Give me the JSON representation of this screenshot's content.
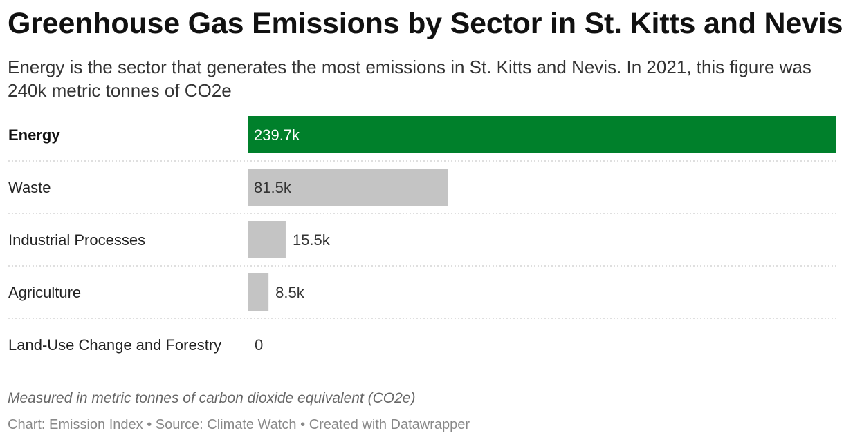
{
  "title": "Greenhouse Gas Emissions by Sector in St. Kitts and Nevis",
  "subtitle": "Energy is the sector that generates the most emissions in St. Kitts and Nevis. In 2021, this figure was 240k metric tonnes of CO2e",
  "note": "Measured in metric tonnes of carbon dioxide equivalent (CO2e)",
  "footer": {
    "chart_credit": "Chart: Emission Index",
    "separator": "•",
    "source": "Source: Climate Watch",
    "tool": "Created with Datawrapper"
  },
  "colors": {
    "highlight": "#00802b",
    "default_bar": "#c4c4c4",
    "highlight_label": "#ffffff",
    "default_label": "#333333"
  },
  "chart_data": {
    "type": "bar",
    "orientation": "horizontal",
    "categories": [
      "Energy",
      "Waste",
      "Industrial Processes",
      "Agriculture",
      "Land-Use Change and Forestry"
    ],
    "values": [
      239700,
      81500,
      15500,
      8500,
      0
    ],
    "value_labels": [
      "239.7k",
      "81.5k",
      "15.5k",
      "8.5k",
      "0"
    ],
    "highlighted": "Energy",
    "xlim": [
      0,
      239700
    ]
  }
}
